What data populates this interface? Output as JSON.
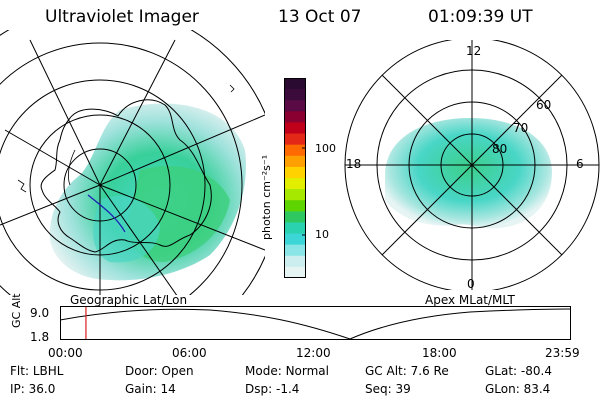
{
  "header": {
    "instrument": "Ultraviolet Imager",
    "date": "13 Oct 07",
    "time": "01:09:39 UT"
  },
  "left_panel": {
    "caption": "Geographic Lat/Lon"
  },
  "right_panel": {
    "caption": "Apex MLat/MLT",
    "mlt_labels": [
      "12",
      "18",
      "6",
      "0"
    ],
    "lat_labels": [
      "60",
      "70",
      "80"
    ]
  },
  "colorbar": {
    "unit_label": "photon cm⁻²s⁻¹",
    "ticks": [
      "100",
      "10"
    ],
    "colors": [
      "#2a0a30",
      "#3b0b3b",
      "#5a0a44",
      "#8a0030",
      "#c0001a",
      "#e42818",
      "#ff6a00",
      "#ff9f00",
      "#ffd200",
      "#e2ee00",
      "#a6e800",
      "#5ed400",
      "#2fc860",
      "#2ad2b0",
      "#3cd6d6",
      "#8ae6e6",
      "#cceeee",
      "#e6f4f4"
    ]
  },
  "timeline": {
    "axis_label": "GC Alt",
    "y_ticks": [
      "9.0",
      "1.8"
    ],
    "x_ticks": [
      "00:00",
      "06:00",
      "12:00",
      "18:00",
      "23:59"
    ],
    "current_time_fraction": 0.049
  },
  "status": {
    "row1": [
      {
        "key": "Flt:",
        "value": "LBHL"
      },
      {
        "key": "Door:",
        "value": "Open"
      },
      {
        "key": "Mode:",
        "value": "Normal"
      },
      {
        "key": "GC Alt:",
        "value": "7.6 Re"
      },
      {
        "key": "GLat:",
        "value": "-80.4"
      }
    ],
    "row2": [
      {
        "key": "IP:",
        "value": "36.0"
      },
      {
        "key": "Gain:",
        "value": "14"
      },
      {
        "key": "Dsp:",
        "value": "-1.4"
      },
      {
        "key": "Seq:",
        "value": "39"
      },
      {
        "key": "GLon:",
        "value": "83.4"
      }
    ]
  }
}
